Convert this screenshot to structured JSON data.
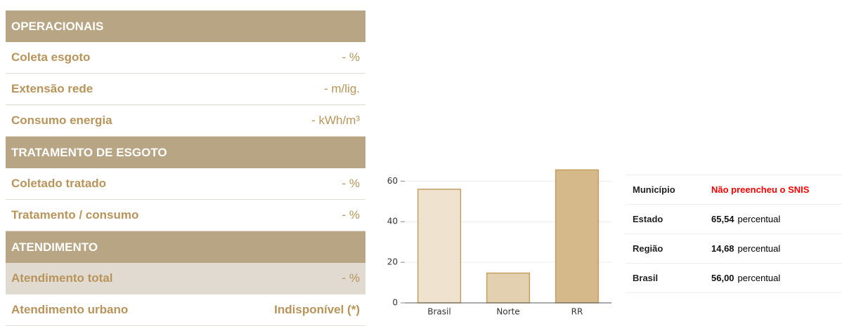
{
  "panel": {
    "sections": [
      {
        "title": "OPERACIONAIS",
        "rows": [
          {
            "label": "Coleta esgoto",
            "value": "- %"
          },
          {
            "label": "Extensão rede",
            "value": "- m/lig."
          },
          {
            "label": "Consumo energia",
            "value": "- kWh/m³"
          }
        ]
      },
      {
        "title": "TRATAMENTO DE ESGOTO",
        "rows": [
          {
            "label": "Coletado tratado",
            "value": "- %"
          },
          {
            "label": "Tratamento / consumo",
            "value": "- %"
          }
        ]
      },
      {
        "title": "ATENDIMENTO",
        "rows": [
          {
            "label": "Atendimento total",
            "value": "- %"
          },
          {
            "label": "Atendimento urbano",
            "value": "Indisponível (*)"
          }
        ]
      }
    ]
  },
  "chart_data": {
    "type": "bar",
    "categories": [
      "Brasil",
      "Norte",
      "RR"
    ],
    "values": [
      56.0,
      14.68,
      65.54
    ],
    "colors": [
      "#efe3cf",
      "#e3d0b0",
      "#d5b98b"
    ],
    "edge_color": "#c29e62",
    "ylim": [
      0,
      66
    ],
    "yticks": [
      0,
      20,
      40,
      60
    ],
    "grid": true
  },
  "info": {
    "rows": [
      {
        "label": "Município",
        "value": "Não preencheu o SNIS"
      },
      {
        "label": "Estado",
        "value": "65,54",
        "unit": "percentual"
      },
      {
        "label": "Região",
        "value": "14,68",
        "unit": "percentual"
      },
      {
        "label": "Brasil",
        "value": "56,00",
        "unit": "percentual"
      }
    ]
  }
}
